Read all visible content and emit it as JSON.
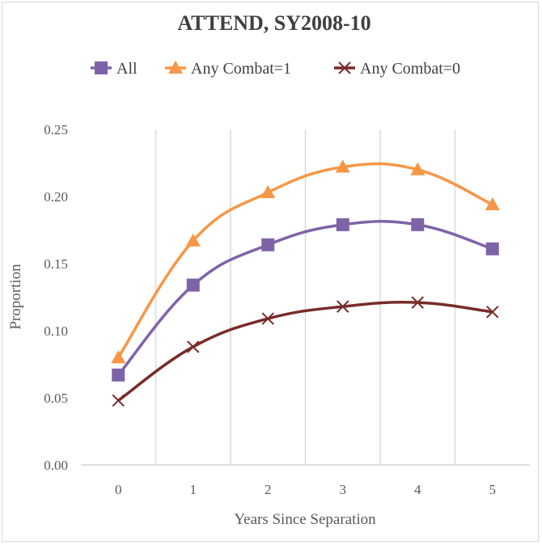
{
  "chart_data": {
    "type": "line",
    "title": "ATTEND, SY2008-10",
    "xlabel": "Years Since Separation",
    "ylabel": "Proportion",
    "categories": [
      "0",
      "1",
      "2",
      "3",
      "4",
      "5"
    ],
    "y_ticks": [
      "0.00",
      "0.05",
      "0.10",
      "0.15",
      "0.20",
      "0.25"
    ],
    "ylim": [
      0,
      0.25
    ],
    "grid": "vertical",
    "legend_position": "top",
    "series": [
      {
        "name": "All",
        "color": "#7f63a8",
        "marker": "square",
        "values": [
          0.067,
          0.134,
          0.164,
          0.179,
          0.179,
          0.161
        ]
      },
      {
        "name": "Any Combat=1",
        "color": "#f79646",
        "marker": "triangle",
        "values": [
          0.08,
          0.167,
          0.203,
          0.222,
          0.22,
          0.194
        ]
      },
      {
        "name": "Any Combat=0",
        "color": "#772c2a",
        "marker": "x",
        "values": [
          0.048,
          0.088,
          0.109,
          0.118,
          0.121,
          0.114
        ]
      }
    ]
  }
}
